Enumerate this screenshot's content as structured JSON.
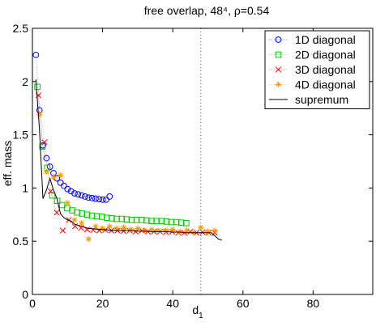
{
  "chart_data": {
    "type": "scatter",
    "title": "free overlap, 48⁴, ρ=0.54",
    "xlabel": "d",
    "xlabel_sub": "1",
    "ylabel": "eff. mass",
    "xlim": [
      0,
      97
    ],
    "ylim": [
      0,
      2.5
    ],
    "x_ticks": [
      0,
      20,
      40,
      60,
      80
    ],
    "y_ticks": [
      0,
      0.5,
      1,
      1.5,
      2,
      2.5
    ],
    "grid": false,
    "legend_position": "top-right",
    "vertical_line_x": 48,
    "series": [
      {
        "name": "1D diagonal",
        "marker": "circle",
        "color": "#0000ff",
        "points": [
          [
            1,
            2.25
          ],
          [
            2,
            1.73
          ],
          [
            3,
            1.4
          ],
          [
            4,
            1.28
          ],
          [
            5,
            1.2
          ],
          [
            6,
            1.14
          ],
          [
            7,
            1.09
          ],
          [
            8,
            1.05
          ],
          [
            9,
            1.02
          ],
          [
            10,
            0.99
          ],
          [
            11,
            0.97
          ],
          [
            12,
            0.95
          ],
          [
            13,
            0.94
          ],
          [
            14,
            0.93
          ],
          [
            15,
            0.92
          ],
          [
            16,
            0.91
          ],
          [
            17,
            0.905
          ],
          [
            18,
            0.9
          ],
          [
            19,
            0.895
          ],
          [
            20,
            0.89
          ],
          [
            21,
            0.89
          ],
          [
            22,
            0.92
          ]
        ]
      },
      {
        "name": "2D diagonal",
        "marker": "square",
        "color": "#00cc00",
        "points": [
          [
            1.41,
            1.95
          ],
          [
            2.83,
            1.39
          ],
          [
            4.24,
            1.19
          ],
          [
            5.66,
            0.93
          ],
          [
            7.07,
            0.88
          ],
          [
            8.49,
            0.84
          ],
          [
            9.9,
            0.81
          ],
          [
            11.31,
            0.79
          ],
          [
            12.73,
            0.77
          ],
          [
            14.14,
            0.76
          ],
          [
            15.56,
            0.75
          ],
          [
            16.97,
            0.74
          ],
          [
            18.38,
            0.735
          ],
          [
            19.8,
            0.73
          ],
          [
            21.21,
            0.72
          ],
          [
            22.63,
            0.715
          ],
          [
            24.04,
            0.71
          ],
          [
            25.46,
            0.71
          ],
          [
            26.87,
            0.705
          ],
          [
            28.28,
            0.7
          ],
          [
            29.7,
            0.7
          ],
          [
            31.11,
            0.7
          ],
          [
            32.53,
            0.695
          ],
          [
            33.94,
            0.69
          ],
          [
            35.36,
            0.69
          ],
          [
            36.77,
            0.69
          ],
          [
            38.18,
            0.685
          ],
          [
            39.6,
            0.68
          ],
          [
            41.01,
            0.68
          ],
          [
            42.43,
            0.675
          ],
          [
            43.84,
            0.67
          ]
        ]
      },
      {
        "name": "3D diagonal",
        "marker": "x",
        "color": "#ff0000",
        "points": [
          [
            1.73,
            1.87
          ],
          [
            3.46,
            1.43
          ],
          [
            5.2,
            0.97
          ],
          [
            6.93,
            0.77
          ],
          [
            8.66,
            0.6
          ],
          [
            10.39,
            0.7
          ],
          [
            12.12,
            0.64
          ],
          [
            13.86,
            0.625
          ],
          [
            15.59,
            0.61
          ],
          [
            17.32,
            0.605
          ],
          [
            19.05,
            0.6
          ],
          [
            20.78,
            0.605
          ],
          [
            22.52,
            0.6
          ],
          [
            24.25,
            0.6
          ],
          [
            25.98,
            0.595
          ],
          [
            27.71,
            0.6
          ],
          [
            29.44,
            0.59
          ],
          [
            31.18,
            0.6
          ],
          [
            32.91,
            0.59
          ],
          [
            34.64,
            0.59
          ],
          [
            36.37,
            0.59
          ],
          [
            38.11,
            0.585
          ],
          [
            39.84,
            0.59
          ],
          [
            41.57,
            0.58
          ],
          [
            43.3,
            0.58
          ],
          [
            45.03,
            0.59
          ],
          [
            46.77,
            0.58
          ],
          [
            48.5,
            0.585
          ],
          [
            50.23,
            0.58
          ],
          [
            51.96,
            0.58
          ]
        ]
      },
      {
        "name": "4D diagonal",
        "marker": "star",
        "color": "#ff9900",
        "points": [
          [
            2,
            1.69
          ],
          [
            4,
            1.15
          ],
          [
            6,
            1.1
          ],
          [
            8,
            1.12
          ],
          [
            10,
            0.86
          ],
          [
            12,
            0.7
          ],
          [
            14,
            0.67
          ],
          [
            16,
            0.52
          ],
          [
            18,
            0.64
          ],
          [
            20,
            0.62
          ],
          [
            22,
            0.64
          ],
          [
            24,
            0.62
          ],
          [
            26,
            0.63
          ],
          [
            28,
            0.61
          ],
          [
            30,
            0.62
          ],
          [
            32,
            0.6
          ],
          [
            34,
            0.61
          ],
          [
            36,
            0.6
          ],
          [
            38,
            0.6
          ],
          [
            40,
            0.61
          ],
          [
            42,
            0.59
          ],
          [
            44,
            0.6
          ],
          [
            46,
            0.58
          ],
          [
            48,
            0.63
          ],
          [
            50,
            0.59
          ],
          [
            52,
            0.6
          ]
        ]
      },
      {
        "name": "supremum",
        "marker": "line",
        "color": "#000000",
        "points": [
          [
            1,
            2.02
          ],
          [
            2,
            1.55
          ],
          [
            3,
            0.9
          ],
          [
            4,
            0.98
          ],
          [
            5,
            1.09
          ],
          [
            6,
            0.98
          ],
          [
            7,
            0.9
          ],
          [
            8,
            0.76
          ],
          [
            9,
            0.72
          ],
          [
            10,
            0.7
          ],
          [
            11,
            0.69
          ],
          [
            12,
            0.66
          ],
          [
            13,
            0.65
          ],
          [
            14,
            0.64
          ],
          [
            15,
            0.63
          ],
          [
            16,
            0.62
          ],
          [
            18,
            0.615
          ],
          [
            20,
            0.61
          ],
          [
            22,
            0.605
          ],
          [
            24,
            0.6
          ],
          [
            26,
            0.6
          ],
          [
            28,
            0.6
          ],
          [
            30,
            0.595
          ],
          [
            32,
            0.595
          ],
          [
            34,
            0.59
          ],
          [
            36,
            0.59
          ],
          [
            38,
            0.59
          ],
          [
            40,
            0.585
          ],
          [
            42,
            0.585
          ],
          [
            44,
            0.58
          ],
          [
            46,
            0.58
          ],
          [
            48,
            0.58
          ],
          [
            50,
            0.58
          ],
          [
            51,
            0.58
          ],
          [
            52,
            0.55
          ],
          [
            53,
            0.52
          ],
          [
            54,
            0.51
          ]
        ]
      }
    ]
  }
}
